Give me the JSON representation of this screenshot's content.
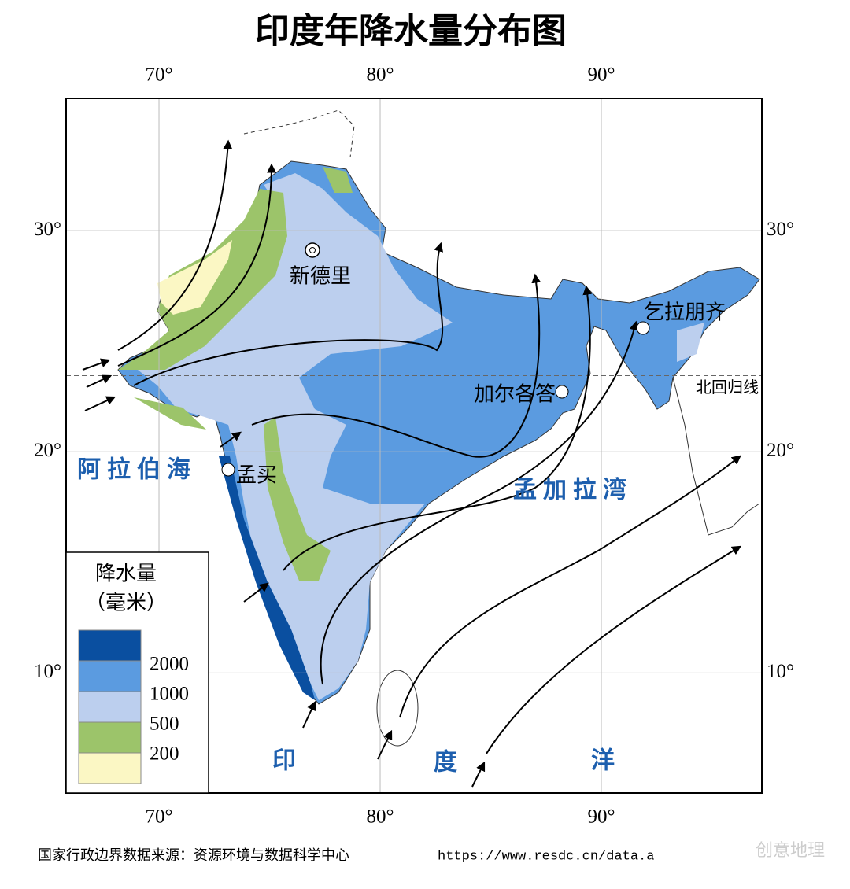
{
  "title": "印度年降水量分布图",
  "map": {
    "lon_range": [
      65.8,
      97.26
    ],
    "lat_range": [
      4.57,
      35.98
    ],
    "lon_ticks": [
      {
        "value": 70,
        "label": "70°"
      },
      {
        "value": 80,
        "label": "80°"
      },
      {
        "value": 90,
        "label": "90°"
      }
    ],
    "lat_ticks": [
      {
        "value": 30,
        "label": "30°"
      },
      {
        "value": 20,
        "label": "20°"
      },
      {
        "value": 10,
        "label": "10°"
      }
    ],
    "tropic_lat": 23.44,
    "tropic_label": "北回归线",
    "cities": [
      "新德里",
      "乞拉朋齐",
      "加尔各答",
      "孟买"
    ],
    "seas": [
      "阿拉伯海",
      "孟加拉湾"
    ],
    "ocean_chars": [
      "印",
      "度",
      "洋"
    ]
  },
  "legend": {
    "title": "降水量",
    "unit": "（毫米）",
    "labels": [
      2000,
      1000,
      500,
      200
    ]
  },
  "footer": {
    "source": "国家行政边界数据来源：资源环境与数据科学中心",
    "url": "https://www.resdc.cn/data.a"
  },
  "watermark": "创意地理"
}
